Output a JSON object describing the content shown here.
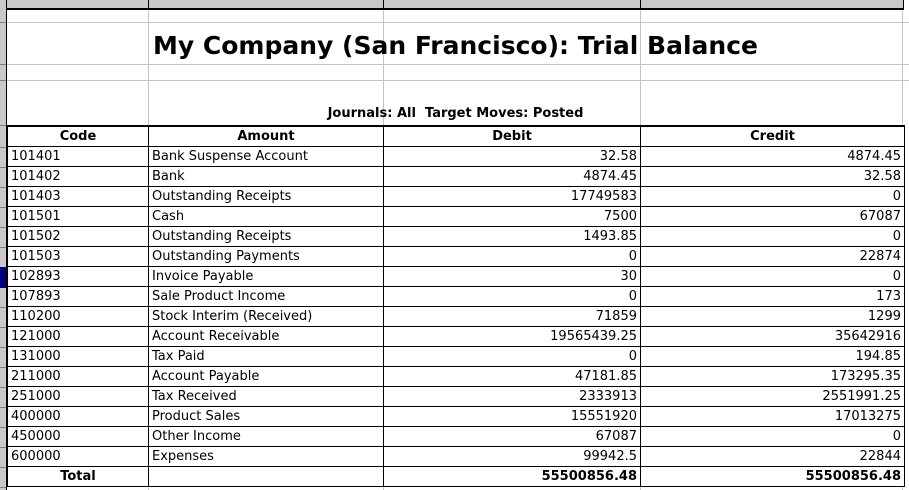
{
  "sheet": {
    "title": "My Company (San Francisco): Trial Balance",
    "subtitle": "Journals: All  Target Moves: Posted"
  },
  "table": {
    "columns": [
      "Code",
      "Amount",
      "Debit",
      "Credit"
    ],
    "rows": [
      {
        "code": "101401",
        "amount": "Bank Suspense Account",
        "debit": "32.58",
        "credit": "4874.45"
      },
      {
        "code": "101402",
        "amount": "Bank",
        "debit": "4874.45",
        "credit": "32.58"
      },
      {
        "code": "101403",
        "amount": "Outstanding Receipts",
        "debit": "17749583",
        "credit": "0"
      },
      {
        "code": "101501",
        "amount": "Cash",
        "debit": "7500",
        "credit": "67087"
      },
      {
        "code": "101502",
        "amount": "Outstanding Receipts",
        "debit": "1493.85",
        "credit": "0"
      },
      {
        "code": "101503",
        "amount": "Outstanding Payments",
        "debit": "0",
        "credit": "22874"
      },
      {
        "code": "102893",
        "amount": "Invoice Payable",
        "debit": "30",
        "credit": "0",
        "selected": true
      },
      {
        "code": "107893",
        "amount": "Sale Product Income",
        "debit": "0",
        "credit": "173"
      },
      {
        "code": "110200",
        "amount": "Stock Interim (Received)",
        "debit": "71859",
        "credit": "1299"
      },
      {
        "code": "121000",
        "amount": "Account Receivable",
        "debit": "19565439.25",
        "credit": "35642916"
      },
      {
        "code": "131000",
        "amount": "Tax Paid",
        "debit": "0",
        "credit": "194.85"
      },
      {
        "code": "211000",
        "amount": "Account Payable",
        "debit": "47181.85",
        "credit": "173295.35"
      },
      {
        "code": "251000",
        "amount": "Tax Received",
        "debit": "2333913",
        "credit": "2551991.25"
      },
      {
        "code": "400000",
        "amount": "Product Sales",
        "debit": "15551920",
        "credit": "17013275"
      },
      {
        "code": "450000",
        "amount": "Other Income",
        "debit": "67087",
        "credit": "0"
      },
      {
        "code": "600000",
        "amount": "Expenses",
        "debit": "99942.5",
        "credit": "22844"
      }
    ],
    "total": {
      "label": "Total",
      "debit": "55500856.48",
      "credit": "55500856.48"
    },
    "selected_row_code": "102893"
  },
  "colors": {
    "selection": "#000080",
    "grid_line": "#c6c6c6",
    "strip_background": "#c9c9c9",
    "cell_border": "#000000"
  }
}
